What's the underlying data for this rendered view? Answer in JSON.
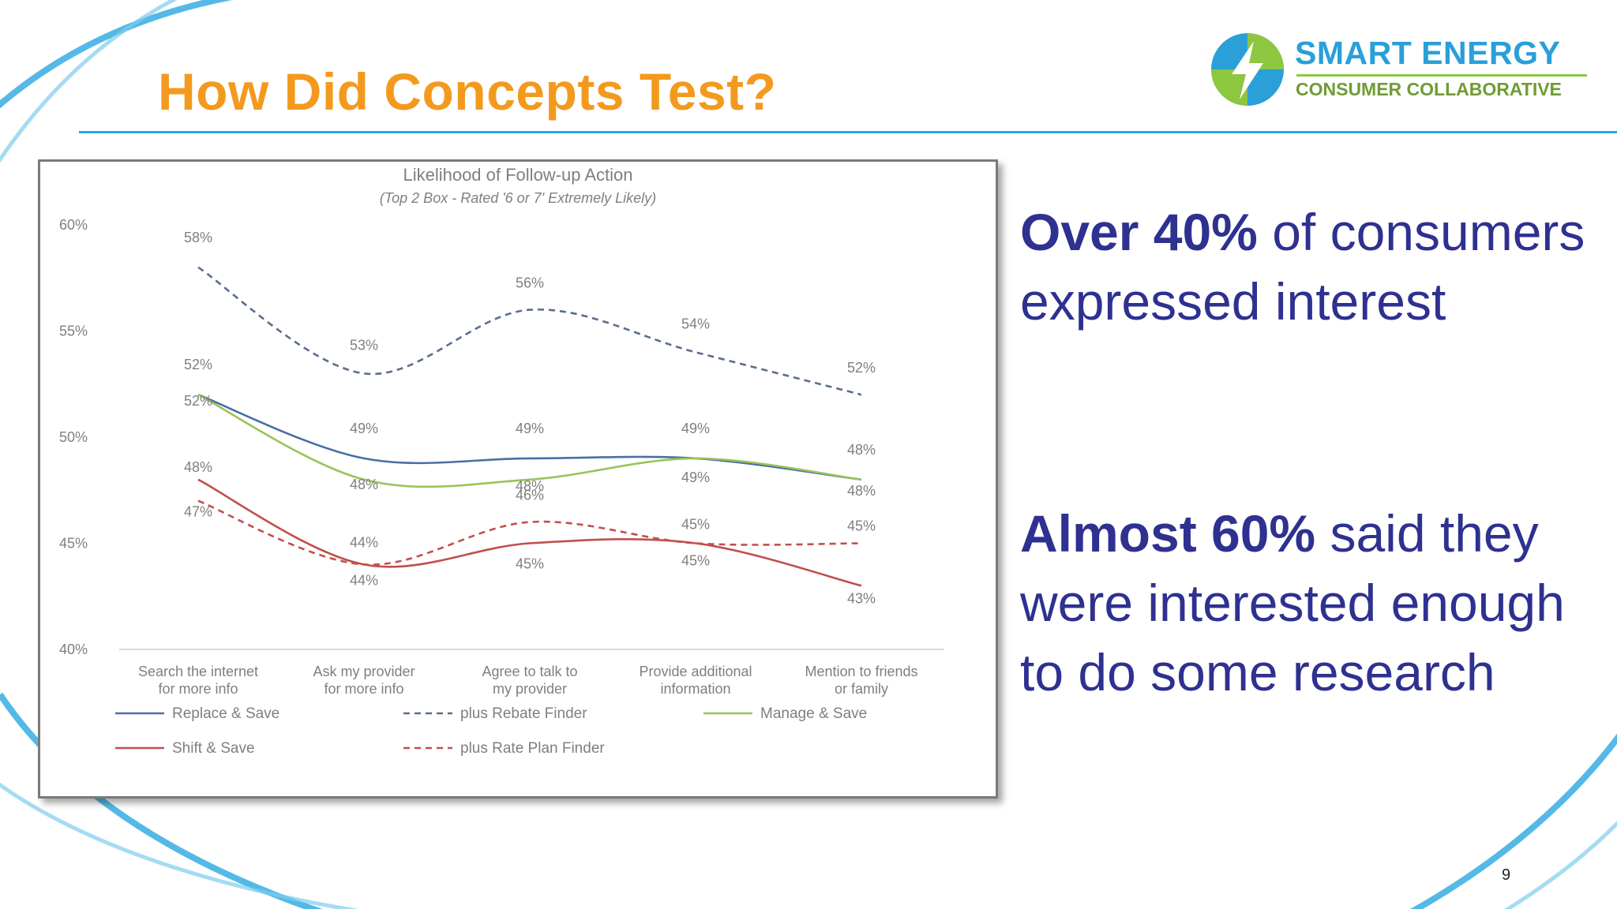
{
  "slide": {
    "title": "How Did Concepts Test?",
    "page_number": "9",
    "accent_color": "#F39A1E",
    "text_color": "#2E3190",
    "rule_color": "#29A8E0"
  },
  "logo": {
    "name": "SMART ENERGY",
    "subtitle": "CONSUMER COLLABORATIVE",
    "icon": "lightning-bolt-icon"
  },
  "callouts": [
    {
      "bold": "Over 40%",
      "rest": " of consumers expressed interest"
    },
    {
      "bold": "Almost 60%",
      "rest": " said they were interested enough to do some research"
    }
  ],
  "chart_data": {
    "type": "line",
    "title": "Likelihood of Follow-up Action",
    "subtitle": "(Top 2 Box - Rated '6 or 7' Extremely Likely)",
    "categories": [
      [
        "Search the internet",
        "for more info"
      ],
      [
        "Ask my provider",
        "for more info"
      ],
      [
        "Agree to talk to",
        "my provider"
      ],
      [
        "Provide additional",
        "information"
      ],
      [
        "Mention to friends",
        "or family"
      ]
    ],
    "ylim": [
      40,
      60
    ],
    "yticks": [
      40,
      45,
      50,
      55,
      60
    ],
    "ytick_labels": [
      "40%",
      "45%",
      "50%",
      "55%",
      "60%"
    ],
    "legend_position": "bottom",
    "series": [
      {
        "name": "Replace & Save",
        "values": [
          52,
          49,
          49,
          49,
          48
        ],
        "labels": [
          "52%",
          "49%",
          "49%",
          "49%",
          "48%"
        ],
        "color": "#4A6FA5",
        "dashed": false
      },
      {
        "name": "plus Rebate Finder",
        "values": [
          58,
          53,
          56,
          54,
          52
        ],
        "labels": [
          "58%",
          "53%",
          "56%",
          "54%",
          "52%"
        ],
        "color": "#5A6E8C",
        "dashed": true
      },
      {
        "name": "Manage & Save",
        "values": [
          52,
          48,
          48,
          49,
          48
        ],
        "labels": [
          "52%",
          "48%",
          "48%",
          "49%",
          "48%"
        ],
        "color": "#9CC35A",
        "dashed": false
      },
      {
        "name": "Shift & Save",
        "values": [
          48,
          44,
          45,
          45,
          43
        ],
        "labels": [
          "48%",
          "44%",
          "45%",
          "45%",
          "43%"
        ],
        "color": "#C0504D",
        "dashed": false
      },
      {
        "name": "plus Rate Plan Finder",
        "values": [
          47,
          44,
          46,
          45,
          45
        ],
        "labels": [
          "47%",
          "44%",
          "46%",
          "45%",
          "45%"
        ],
        "color": "#C0504D",
        "dashed": true
      }
    ]
  }
}
